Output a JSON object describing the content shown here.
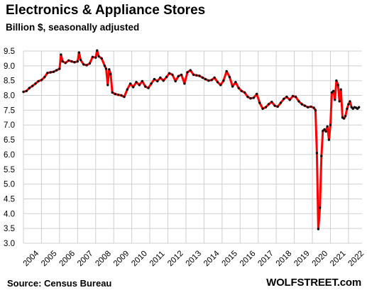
{
  "chart_data": {
    "type": "line",
    "title": "Electronics & Appliance Stores",
    "subtitle": "Billion $, seasonally adjusted",
    "xlabel": "",
    "ylabel": "",
    "ylim": [
      3.0,
      9.5
    ],
    "yticks": [
      "3.0",
      "3.5",
      "4.0",
      "4.5",
      "5.0",
      "5.5",
      "6.0",
      "6.5",
      "7.0",
      "7.5",
      "8.0",
      "8.5",
      "9.0",
      "9.5"
    ],
    "xlim": [
      2004.0,
      2022.75
    ],
    "xticks": [
      "2004",
      "2005",
      "2006",
      "2007",
      "2008",
      "2009",
      "2010",
      "2011",
      "2012",
      "2013",
      "2014",
      "2015",
      "2016",
      "2017",
      "2018",
      "2019",
      "2020",
      "2021",
      "2022"
    ],
    "grid": true,
    "series": [
      {
        "color": "#ff0000",
        "marker_color": "#111111",
        "points": [
          [
            2004.0,
            8.12
          ],
          [
            2004.17,
            8.15
          ],
          [
            2004.33,
            8.25
          ],
          [
            2004.5,
            8.32
          ],
          [
            2004.67,
            8.4
          ],
          [
            2004.83,
            8.48
          ],
          [
            2005.0,
            8.52
          ],
          [
            2005.17,
            8.62
          ],
          [
            2005.33,
            8.76
          ],
          [
            2005.5,
            8.78
          ],
          [
            2005.67,
            8.8
          ],
          [
            2005.83,
            8.85
          ],
          [
            2006.0,
            8.9
          ],
          [
            2006.08,
            9.38
          ],
          [
            2006.17,
            9.15
          ],
          [
            2006.33,
            9.1
          ],
          [
            2006.5,
            9.18
          ],
          [
            2006.67,
            9.15
          ],
          [
            2006.83,
            9.12
          ],
          [
            2007.0,
            9.15
          ],
          [
            2007.08,
            9.45
          ],
          [
            2007.17,
            9.2
          ],
          [
            2007.33,
            9.05
          ],
          [
            2007.5,
            9.02
          ],
          [
            2007.67,
            9.08
          ],
          [
            2007.83,
            9.3
          ],
          [
            2008.0,
            9.28
          ],
          [
            2008.08,
            9.52
          ],
          [
            2008.17,
            9.32
          ],
          [
            2008.33,
            9.25
          ],
          [
            2008.5,
            9.0
          ],
          [
            2008.58,
            8.9
          ],
          [
            2008.67,
            8.35
          ],
          [
            2008.75,
            8.88
          ],
          [
            2008.83,
            8.72
          ],
          [
            2008.92,
            8.1
          ],
          [
            2009.08,
            8.05
          ],
          [
            2009.25,
            8.02
          ],
          [
            2009.42,
            8.0
          ],
          [
            2009.58,
            7.95
          ],
          [
            2009.75,
            8.2
          ],
          [
            2009.92,
            8.4
          ],
          [
            2010.08,
            8.28
          ],
          [
            2010.25,
            8.45
          ],
          [
            2010.42,
            8.35
          ],
          [
            2010.58,
            8.48
          ],
          [
            2010.75,
            8.3
          ],
          [
            2010.92,
            8.25
          ],
          [
            2011.08,
            8.4
          ],
          [
            2011.25,
            8.55
          ],
          [
            2011.42,
            8.48
          ],
          [
            2011.58,
            8.6
          ],
          [
            2011.75,
            8.5
          ],
          [
            2011.92,
            8.62
          ],
          [
            2012.08,
            8.75
          ],
          [
            2012.25,
            8.7
          ],
          [
            2012.42,
            8.48
          ],
          [
            2012.58,
            8.65
          ],
          [
            2012.75,
            8.7
          ],
          [
            2012.92,
            8.4
          ],
          [
            2013.08,
            8.78
          ],
          [
            2013.25,
            8.85
          ],
          [
            2013.42,
            8.7
          ],
          [
            2013.58,
            8.68
          ],
          [
            2013.75,
            8.66
          ],
          [
            2013.92,
            8.6
          ],
          [
            2014.08,
            8.55
          ],
          [
            2014.25,
            8.5
          ],
          [
            2014.42,
            8.52
          ],
          [
            2014.58,
            8.6
          ],
          [
            2014.75,
            8.45
          ],
          [
            2014.92,
            8.35
          ],
          [
            2015.08,
            8.5
          ],
          [
            2015.25,
            8.82
          ],
          [
            2015.42,
            8.62
          ],
          [
            2015.58,
            8.3
          ],
          [
            2015.75,
            8.45
          ],
          [
            2015.92,
            8.25
          ],
          [
            2016.08,
            8.15
          ],
          [
            2016.25,
            8.1
          ],
          [
            2016.42,
            7.95
          ],
          [
            2016.58,
            7.9
          ],
          [
            2016.75,
            7.92
          ],
          [
            2016.92,
            8.05
          ],
          [
            2017.08,
            7.75
          ],
          [
            2017.25,
            7.55
          ],
          [
            2017.42,
            7.6
          ],
          [
            2017.58,
            7.7
          ],
          [
            2017.75,
            7.78
          ],
          [
            2017.92,
            7.65
          ],
          [
            2018.08,
            7.62
          ],
          [
            2018.25,
            7.75
          ],
          [
            2018.42,
            7.88
          ],
          [
            2018.58,
            7.95
          ],
          [
            2018.75,
            7.85
          ],
          [
            2018.92,
            7.98
          ],
          [
            2019.08,
            7.95
          ],
          [
            2019.25,
            7.8
          ],
          [
            2019.42,
            7.7
          ],
          [
            2019.58,
            7.65
          ],
          [
            2019.75,
            7.6
          ],
          [
            2019.92,
            7.62
          ],
          [
            2020.08,
            7.58
          ],
          [
            2020.17,
            7.5
          ],
          [
            2020.25,
            6.05
          ],
          [
            2020.33,
            3.48
          ],
          [
            2020.42,
            4.2
          ],
          [
            2020.5,
            5.95
          ],
          [
            2020.58,
            6.8
          ],
          [
            2020.67,
            6.85
          ],
          [
            2020.75,
            6.78
          ],
          [
            2020.83,
            6.95
          ],
          [
            2020.92,
            6.5
          ],
          [
            2021.0,
            7.0
          ],
          [
            2021.08,
            8.1
          ],
          [
            2021.17,
            8.15
          ],
          [
            2021.25,
            7.85
          ],
          [
            2021.33,
            8.5
          ],
          [
            2021.42,
            8.35
          ],
          [
            2021.5,
            7.8
          ],
          [
            2021.58,
            8.2
          ],
          [
            2021.67,
            7.25
          ],
          [
            2021.75,
            7.22
          ],
          [
            2021.83,
            7.3
          ],
          [
            2021.92,
            7.55
          ],
          [
            2022.0,
            7.7
          ],
          [
            2022.08,
            7.8
          ],
          [
            2022.17,
            7.6
          ],
          [
            2022.25,
            7.55
          ],
          [
            2022.33,
            7.6
          ],
          [
            2022.42,
            7.58
          ],
          [
            2022.5,
            7.55
          ],
          [
            2022.58,
            7.6
          ]
        ]
      }
    ]
  },
  "source": "Source: Census Bureau",
  "brand": "WOLFSTREET.com"
}
